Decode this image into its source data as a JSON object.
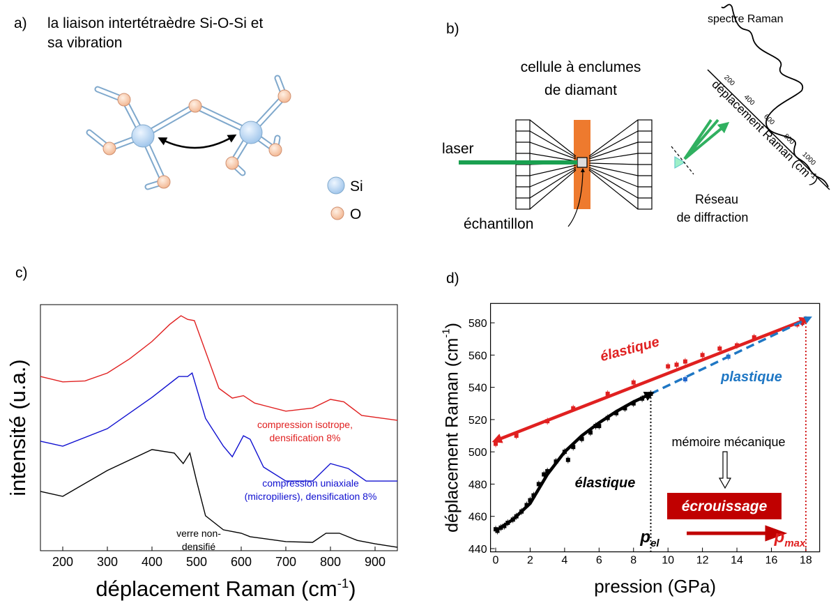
{
  "panel_labels": [
    "a)",
    "b)",
    "c)",
    "d)"
  ],
  "diagram_a": {
    "title_lines": [
      "la liaison intertétraèdre Si-O-Si et",
      "sa vibration"
    ],
    "legend": [
      "Si",
      "O"
    ]
  },
  "diagram_b": {
    "spectrum_label": "spectre Raman",
    "cell_lines": [
      "cellule à enclumes",
      "de diamant"
    ],
    "laser": "laser",
    "sample": "échantillon",
    "grating_lines": [
      "Réseau",
      "de diffraction"
    ],
    "axis_label": [
      "déplacement Raman (cm",
      "-1",
      ")"
    ],
    "axis_ticks": [
      200,
      400,
      600,
      800,
      1000
    ]
  },
  "chart_data": [
    {
      "type": "line",
      "ylabel": "intensité (u.a.)",
      "xlabel": [
        "déplacement Raman (cm",
        "-1",
        ")"
      ],
      "xlim": [
        150,
        950
      ],
      "ylim": [
        0,
        10
      ],
      "xticks": [
        200,
        300,
        400,
        500,
        600,
        700,
        800,
        900
      ],
      "series": [
        {
          "name": "compression isotrope, densification 8%",
          "color": "#e02020",
          "x": [
            150,
            200,
            250,
            300,
            350,
            400,
            440,
            465,
            480,
            495,
            520,
            550,
            580,
            605,
            630,
            700,
            760,
            800,
            830,
            870,
            950
          ],
          "values": [
            7.08,
            6.86,
            6.9,
            7.22,
            7.8,
            8.5,
            9.2,
            9.55,
            9.4,
            9.35,
            8.1,
            6.6,
            6.2,
            6.3,
            6.0,
            5.67,
            5.8,
            6.15,
            6.05,
            5.5,
            5.3
          ]
        },
        {
          "name": "compression uniaxiale (micropiliers), densification 8%",
          "color": "#1010d0",
          "x": [
            150,
            200,
            300,
            400,
            460,
            480,
            490,
            520,
            560,
            580,
            605,
            620,
            650,
            700,
            760,
            800,
            840,
            880,
            950
          ],
          "values": [
            4.45,
            4.25,
            4.96,
            6.23,
            7.08,
            7.08,
            7.22,
            5.38,
            4.25,
            3.82,
            4.67,
            4.53,
            3.4,
            2.83,
            2.83,
            3.54,
            3.34,
            2.83,
            2.83
          ]
        },
        {
          "name": "verre non-densifié",
          "color": "#000000",
          "x": [
            150,
            200,
            300,
            400,
            450,
            470,
            485,
            500,
            520,
            560,
            600,
            620,
            700,
            760,
            790,
            820,
            860,
            900,
            950
          ],
          "values": [
            2.41,
            2.21,
            3.26,
            4.11,
            3.97,
            3.54,
            3.97,
            2.83,
            1.42,
            0.85,
            0.71,
            0.57,
            0.37,
            0.34,
            0.71,
            0.71,
            0.42,
            0.28,
            0.14
          ]
        }
      ]
    },
    {
      "type": "scatter",
      "ylabel": [
        "déplacement Raman (cm",
        "-1",
        ")"
      ],
      "xlabel": "pression (GPa)",
      "xlim": [
        -0.3,
        18.8
      ],
      "ylim": [
        438,
        592
      ],
      "xticks": [
        0,
        2,
        4,
        6,
        8,
        10,
        12,
        14,
        16,
        18
      ],
      "yticks": [
        440,
        460,
        480,
        500,
        520,
        540,
        560,
        580
      ],
      "series": [
        {
          "type": "scatter",
          "color": "#000000",
          "x": [
            0,
            0.1,
            0.3,
            0.5,
            0.7,
            1,
            1.2,
            1.5,
            1.8,
            2,
            2.2,
            2.5,
            2.8,
            3,
            3.5,
            4,
            4.2,
            4.5,
            5,
            5.5,
            5.8,
            6,
            6.5,
            7,
            7.5,
            8,
            8.5,
            9
          ],
          "values": [
            452,
            451,
            453,
            454,
            456,
            458,
            460,
            463,
            467,
            470,
            473,
            480,
            486,
            488,
            494,
            500,
            495,
            503,
            508,
            512,
            516,
            516,
            521,
            524,
            527,
            530,
            533,
            536
          ]
        },
        {
          "type": "scatter",
          "color": "#e02020",
          "x": [
            0,
            1.2,
            3,
            4.5,
            6.5,
            8,
            10,
            10.5,
            11,
            12,
            13,
            14,
            15,
            17.5,
            18
          ],
          "values": [
            505,
            510,
            519,
            527,
            536,
            543,
            553,
            554,
            556,
            560,
            564,
            566,
            571,
            579,
            582
          ]
        },
        {
          "type": "scatter",
          "color": "#2266cc",
          "x": [
            11,
            13.5,
            17.8
          ],
          "values": [
            545,
            559,
            580
          ]
        },
        {
          "type": "line",
          "color": "#e02020",
          "arrow": "both",
          "x": [
            0,
            18
          ],
          "values": [
            507,
            582
          ]
        },
        {
          "type": "line",
          "color": "#1f77c4",
          "dash": true,
          "arrow": "end",
          "x": [
            9,
            18.2
          ],
          "values": [
            536,
            583
          ]
        },
        {
          "type": "line",
          "color": "#000000",
          "arrow": "end",
          "x": [
            0,
            1,
            2,
            3,
            4,
            5,
            6,
            7,
            8,
            9
          ],
          "values": [
            451,
            458,
            468,
            486,
            500,
            510,
            518,
            525,
            531,
            536
          ]
        }
      ],
      "vlines": [
        {
          "x": 9,
          "y": 536,
          "color": "#000000"
        },
        {
          "x": 18,
          "y": 580,
          "color": "#d01010"
        }
      ],
      "annotations": [
        {
          "text": "élastique",
          "color": "#e02020"
        },
        {
          "text": "plastique",
          "color": "#1f77c4"
        },
        {
          "text": "élastique",
          "color": "#000000"
        },
        {
          "text": "mémoire mécanique",
          "color": "#000000"
        },
        {
          "text": "écrouissage",
          "color": "#ffffff",
          "box": "#c00000"
        },
        {
          "text": "p",
          "sub": "el",
          "color": "#000000"
        },
        {
          "text": "p",
          "sub": "max",
          "color": "#e02020"
        }
      ]
    }
  ]
}
